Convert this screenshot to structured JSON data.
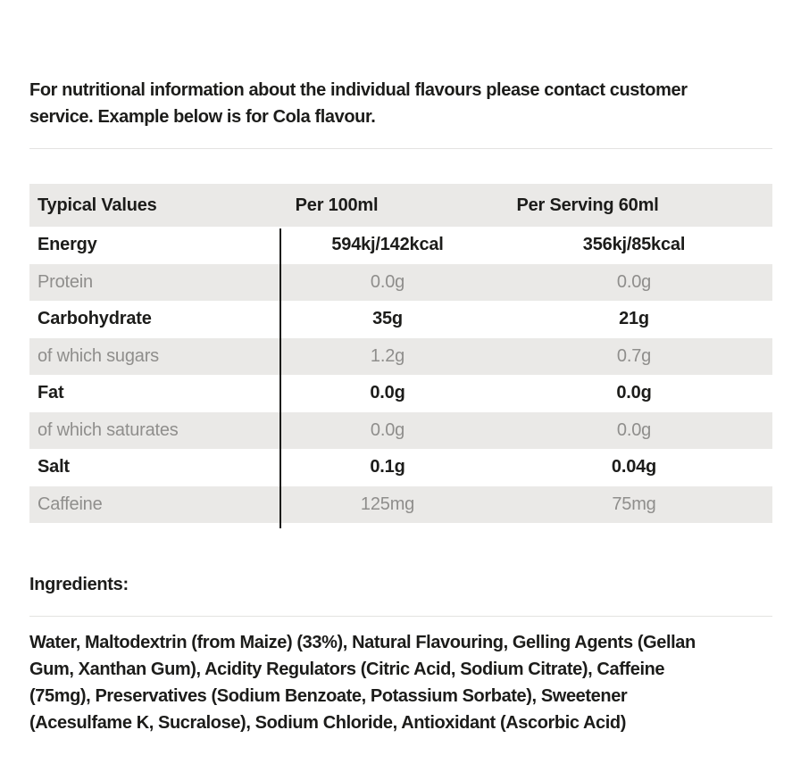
{
  "intro": "For nutritional information about the individual flavours please contact customer service. Example below is for Cola flavour.",
  "table": {
    "headers": {
      "col1": "Typical Values",
      "col2": "Per 100ml",
      "col3": "Per Serving 60ml"
    },
    "rows": [
      {
        "label": "Energy",
        "per100": "594kj/142kcal",
        "serving": "356kj/85kcal"
      },
      {
        "label": "Protein",
        "per100": "0.0g",
        "serving": "0.0g"
      },
      {
        "label": "Carbohydrate",
        "per100": "35g",
        "serving": "21g"
      },
      {
        "label": "of which sugars",
        "per100": "1.2g",
        "serving": "0.7g"
      },
      {
        "label": "Fat",
        "per100": "0.0g",
        "serving": "0.0g"
      },
      {
        "label": "of which saturates",
        "per100": "0.0g",
        "serving": "0.0g"
      },
      {
        "label": "Salt",
        "per100": "0.1g",
        "serving": "0.04g"
      },
      {
        "label": "Caffeine",
        "per100": "125mg",
        "serving": "75mg"
      }
    ]
  },
  "ingredients": {
    "heading": "Ingredients:",
    "text": "Water, Maltodextrin (from Maize) (33%), Natural Flavouring, Gelling Agents (Gellan Gum, Xanthan Gum), Acidity Regulators (Citric Acid, Sodium Citrate), Caffeine (75mg), Preservatives (Sodium Benzoate, Potassium Sorbate), Sweetener (Acesulfame K, Sucralose), Sodium Chloride, Antioxidant (Ascorbic Acid)"
  },
  "colors": {
    "text": "#1c1c1a",
    "muted_text": "#8f8e8c",
    "row_stripe": "#eae9e7",
    "divider": "#e4e3e1"
  }
}
